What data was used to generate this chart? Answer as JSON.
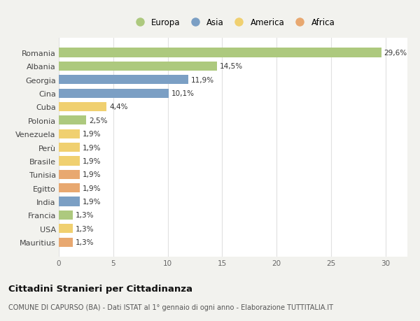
{
  "categories": [
    "Romania",
    "Albania",
    "Georgia",
    "Cina",
    "Cuba",
    "Polonia",
    "Venezuela",
    "Perù",
    "Brasile",
    "Tunisia",
    "Egitto",
    "India",
    "Francia",
    "USA",
    "Mauritius"
  ],
  "values": [
    29.6,
    14.5,
    11.9,
    10.1,
    4.4,
    2.5,
    1.9,
    1.9,
    1.9,
    1.9,
    1.9,
    1.9,
    1.3,
    1.3,
    1.3
  ],
  "labels": [
    "29,6%",
    "14,5%",
    "11,9%",
    "10,1%",
    "4,4%",
    "2,5%",
    "1,9%",
    "1,9%",
    "1,9%",
    "1,9%",
    "1,9%",
    "1,9%",
    "1,3%",
    "1,3%",
    "1,3%"
  ],
  "continent": [
    "Europa",
    "Europa",
    "Asia",
    "Asia",
    "America",
    "Europa",
    "America",
    "America",
    "America",
    "Africa",
    "Africa",
    "Asia",
    "Europa",
    "America",
    "Africa"
  ],
  "colors": {
    "Europa": "#adc97e",
    "Asia": "#7b9fc4",
    "America": "#f0d070",
    "Africa": "#e8a870"
  },
  "legend_order": [
    "Europa",
    "Asia",
    "America",
    "Africa"
  ],
  "title": "Cittadini Stranieri per Cittadinanza",
  "subtitle": "COMUNE DI CAPURSO (BA) - Dati ISTAT al 1° gennaio di ogni anno - Elaborazione TUTTITALIA.IT",
  "xlim": [
    0,
    32
  ],
  "xticks": [
    0,
    5,
    10,
    15,
    20,
    25,
    30
  ],
  "background_color": "#f2f2ee",
  "bar_background": "#ffffff",
  "grid_color": "#e0e0e0"
}
